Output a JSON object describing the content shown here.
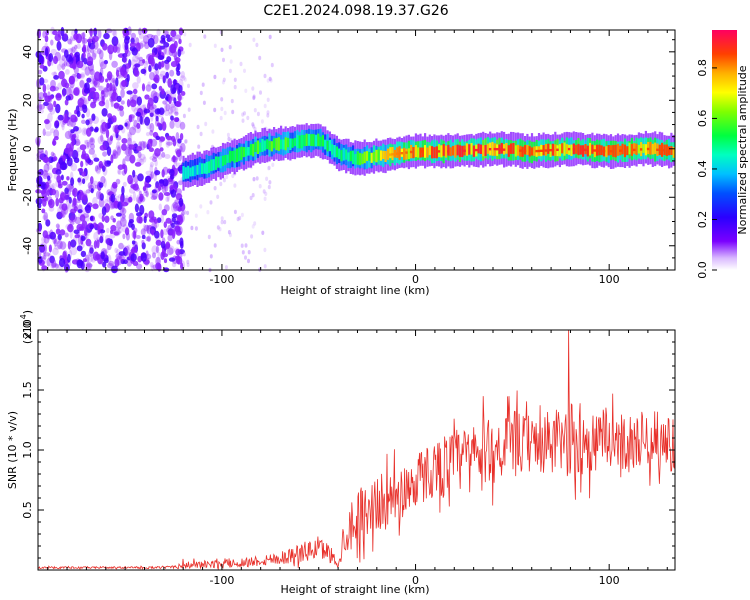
{
  "title": "C2E1.2024.098.19.37.G26",
  "chart_data": [
    {
      "type": "heatmap",
      "panel": "spectrogram",
      "xlabel": "Height of straight line (km)",
      "ylabel": "Frequency (Hz)",
      "xlim": [
        -195,
        134
      ],
      "ylim": [
        -50,
        49
      ],
      "xticks": [
        -100,
        0,
        100
      ],
      "yticks": [
        40,
        20,
        0,
        -20,
        -40
      ],
      "colorbar": {
        "label": "Normalized spectral amplitude",
        "range": [
          0.0,
          0.95
        ],
        "ticks": [
          0.0,
          0.2,
          0.4,
          0.6,
          0.8
        ],
        "colormap": [
          "#7a00ff",
          "#2a00ff",
          "#0040ff",
          "#00c0ff",
          "#00ffc0",
          "#00ff40",
          "#80ff00",
          "#ffff00",
          "#ffb000",
          "#ff4000",
          "#ff0060"
        ]
      },
      "noise_region_end_x": -120,
      "ridge": {
        "x": [
          -120,
          -110,
          -100,
          -90,
          -80,
          -70,
          -60,
          -50,
          -40,
          -30,
          -20,
          -10,
          0,
          20,
          40,
          60,
          80,
          100,
          120,
          134
        ],
        "freq": [
          -10,
          -8,
          -5,
          -2,
          1,
          2,
          3,
          4,
          -2,
          -4,
          -3,
          -2,
          -1,
          -1,
          0,
          -1,
          0,
          -1,
          0,
          -1
        ],
        "peak_amplitude": [
          0.35,
          0.4,
          0.45,
          0.5,
          0.55,
          0.55,
          0.55,
          0.5,
          0.45,
          0.5,
          0.7,
          0.8,
          0.85,
          0.9,
          0.9,
          0.85,
          0.9,
          0.85,
          0.85,
          0.85
        ]
      }
    },
    {
      "type": "line",
      "panel": "snr",
      "xlabel": "Height of straight line (km)",
      "ylabel": "SNR (10 * v/v)",
      "yunit_multiplier": "(x10",
      "yunit_exponent": "4",
      "ylabel_scale": "(x10^4)",
      "xlim": [
        -195,
        134
      ],
      "ylim": [
        0,
        2.0
      ],
      "xticks": [
        -100,
        0,
        100
      ],
      "yticks": [
        0.5,
        1.0,
        1.5,
        2.0
      ],
      "color": "#e8302a",
      "envelope": {
        "x": [
          -195,
          -130,
          -120,
          -100,
          -90,
          -80,
          -70,
          -60,
          -50,
          -45,
          -40,
          -35,
          -30,
          -20,
          -10,
          0,
          10,
          20,
          30,
          40,
          50,
          60,
          70,
          80,
          90,
          100,
          110,
          120,
          134
        ],
        "mean": [
          0.02,
          0.02,
          0.04,
          0.05,
          0.06,
          0.08,
          0.1,
          0.14,
          0.18,
          0.15,
          0.06,
          0.35,
          0.45,
          0.55,
          0.6,
          0.75,
          0.85,
          0.9,
          0.95,
          1.0,
          1.05,
          1.05,
          1.05,
          1.08,
          1.05,
          1.1,
          1.05,
          1.1,
          1.05
        ],
        "noise": [
          0.01,
          0.01,
          0.04,
          0.04,
          0.05,
          0.06,
          0.07,
          0.1,
          0.12,
          0.1,
          0.06,
          0.25,
          0.3,
          0.3,
          0.3,
          0.3,
          0.3,
          0.35,
          0.35,
          0.35,
          0.35,
          0.3,
          0.35,
          0.4,
          0.35,
          0.3,
          0.3,
          0.3,
          0.3
        ]
      },
      "peak": {
        "x": 79,
        "y": 2.0
      }
    }
  ]
}
